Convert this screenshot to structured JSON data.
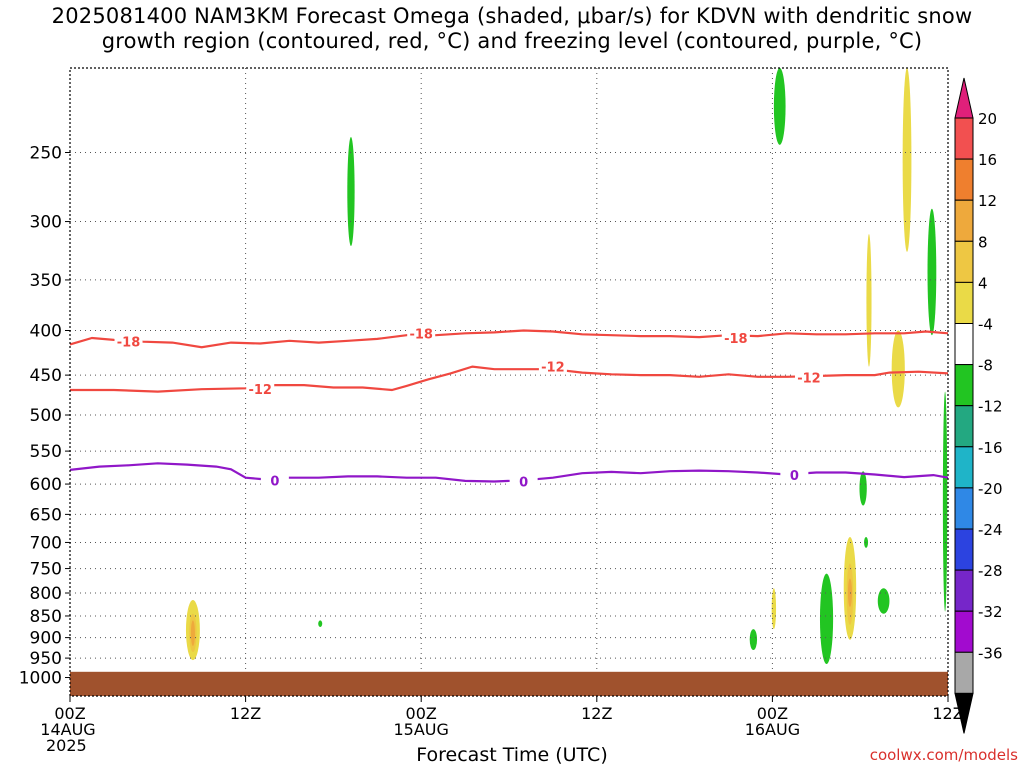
{
  "title": {
    "line1": "2025081400 NAM3KM Forecast Omega (shaded, μbar/s) for KDVN with dendritic snow",
    "line2": "growth region (contoured, red, °C) and freezing level (contoured, purple, °C)"
  },
  "credit": "coolwx.com/models",
  "chart_data": {
    "type": "heatmap",
    "title": "2025081400 NAM3KM Forecast Omega (shaded, μbar/s) for KDVN with dendritic snow growth region (contoured, red, °C) and freezing level (contoured, purple, °C)",
    "xlabel": "Forecast Time (UTC)",
    "ylabel": "",
    "x_range_hours": [
      0,
      60
    ],
    "y_range_hpa": [
      200,
      1050
    ],
    "y_axis": "pressure (log, inverted)",
    "y_ticks": [
      250,
      300,
      350,
      400,
      450,
      500,
      550,
      600,
      650,
      700,
      750,
      800,
      850,
      900,
      950,
      1000
    ],
    "x_ticks": [
      {
        "hour": 0,
        "lines": [
          "00Z",
          "14AUG",
          "2025"
        ]
      },
      {
        "hour": 12,
        "lines": [
          "12Z"
        ]
      },
      {
        "hour": 24,
        "lines": [
          "00Z",
          "15AUG"
        ]
      },
      {
        "hour": 36,
        "lines": [
          "12Z"
        ]
      },
      {
        "hour": 48,
        "lines": [
          "00Z",
          "16AUG"
        ]
      },
      {
        "hour": 60,
        "lines": [
          "12Z"
        ]
      }
    ],
    "grid": true,
    "ground_color": "#a0522d",
    "ground_top_hpa": 985,
    "colorbar": {
      "labels": [
        "20",
        "16",
        "12",
        "8",
        "4",
        "-4",
        "-8",
        "-12",
        "-16",
        "-20",
        "-24",
        "-28",
        "-32",
        "-36"
      ],
      "colors": [
        "#f25050",
        "#ef7f2e",
        "#eea93c",
        "#eec743",
        "#eada47",
        "#ffffff",
        "#22c522",
        "#23a881",
        "#1fb4c8",
        "#2f88e6",
        "#2c43e0",
        "#7626c9",
        "#a20bcf",
        "#a8a8a8"
      ],
      "top_arrow_color": "#e0207a",
      "bottom_arrow_color": "#000000"
    },
    "contours": [
      {
        "name": "-18",
        "color": "#f04840",
        "points": [
          [
            0,
            415
          ],
          [
            1.5,
            408
          ],
          [
            3,
            410
          ],
          [
            5,
            412
          ],
          [
            7,
            413
          ],
          [
            9,
            418
          ],
          [
            11,
            413
          ],
          [
            13,
            414
          ],
          [
            15,
            411
          ],
          [
            17,
            413
          ],
          [
            19,
            411
          ],
          [
            21,
            409
          ],
          [
            23,
            405
          ],
          [
            25,
            405
          ],
          [
            27,
            403
          ],
          [
            29,
            402
          ],
          [
            31,
            400
          ],
          [
            33,
            401
          ],
          [
            35,
            404
          ],
          [
            37,
            405
          ],
          [
            39,
            406
          ],
          [
            41,
            406
          ],
          [
            43,
            407
          ],
          [
            45,
            405
          ],
          [
            47,
            406
          ],
          [
            49,
            403
          ],
          [
            51,
            404
          ],
          [
            53,
            404
          ],
          [
            55,
            403
          ],
          [
            57,
            403
          ],
          [
            58.5,
            401
          ],
          [
            60,
            403
          ]
        ],
        "labels": [
          [
            4,
            412
          ],
          [
            24,
            403
          ],
          [
            45.5,
            408
          ]
        ]
      },
      {
        "name": "-12",
        "color": "#f04840",
        "points": [
          [
            0,
            468
          ],
          [
            3,
            468
          ],
          [
            6,
            470
          ],
          [
            9,
            467
          ],
          [
            12,
            466
          ],
          [
            14,
            462
          ],
          [
            16,
            462
          ],
          [
            18,
            465
          ],
          [
            20,
            465
          ],
          [
            22,
            468
          ],
          [
            23,
            463
          ],
          [
            24.5,
            455
          ],
          [
            26,
            448
          ],
          [
            27.5,
            440
          ],
          [
            29,
            443
          ],
          [
            31,
            443
          ],
          [
            33,
            443
          ],
          [
            35,
            447
          ],
          [
            37,
            449
          ],
          [
            39,
            450
          ],
          [
            41,
            450
          ],
          [
            43,
            452
          ],
          [
            45,
            449
          ],
          [
            47,
            452
          ],
          [
            49,
            452
          ],
          [
            51,
            451
          ],
          [
            53,
            450
          ],
          [
            55,
            450
          ],
          [
            56,
            447
          ],
          [
            58,
            446
          ],
          [
            60,
            448
          ]
        ],
        "labels": [
          [
            13,
            467
          ],
          [
            33,
            440
          ],
          [
            50.5,
            453
          ]
        ]
      },
      {
        "name": "0",
        "color": "#9017c8",
        "points": [
          [
            0,
            578
          ],
          [
            2,
            573
          ],
          [
            4,
            571
          ],
          [
            6,
            568
          ],
          [
            8,
            570
          ],
          [
            10,
            573
          ],
          [
            11,
            577
          ],
          [
            12,
            590
          ],
          [
            13,
            592
          ],
          [
            15,
            590
          ],
          [
            17,
            590
          ],
          [
            19,
            588
          ],
          [
            21,
            588
          ],
          [
            23,
            590
          ],
          [
            25,
            590
          ],
          [
            27,
            595
          ],
          [
            29,
            596
          ],
          [
            31,
            594
          ],
          [
            33,
            590
          ],
          [
            35,
            583
          ],
          [
            37,
            581
          ],
          [
            39,
            583
          ],
          [
            41,
            580
          ],
          [
            43,
            579
          ],
          [
            45,
            580
          ],
          [
            47,
            582
          ],
          [
            49,
            585
          ],
          [
            51,
            582
          ],
          [
            53,
            582
          ],
          [
            55,
            585
          ],
          [
            57,
            589
          ],
          [
            59,
            586
          ],
          [
            60,
            590
          ]
        ],
        "labels": [
          [
            14,
            594
          ],
          [
            31,
            596
          ],
          [
            49.5,
            586
          ]
        ]
      }
    ],
    "shaded_regions": [
      {
        "category": "-8",
        "hour_center": 48.5,
        "hpa_top": 200,
        "hpa_bottom": 245,
        "width_hours": 0.8
      },
      {
        "category": "-8",
        "hour_center": 19.2,
        "hpa_top": 240,
        "hpa_bottom": 320,
        "width_hours": 0.5
      },
      {
        "category": "-8",
        "hour_center": 58.9,
        "hpa_top": 290,
        "hpa_bottom": 405,
        "width_hours": 0.6
      },
      {
        "category": "-8",
        "hour_center": 59.8,
        "hpa_top": 470,
        "hpa_bottom": 840,
        "width_hours": 0.3
      },
      {
        "category": "-8",
        "hour_center": 54.2,
        "hpa_top": 580,
        "hpa_bottom": 635,
        "width_hours": 0.5
      },
      {
        "category": "-8",
        "hour_center": 54.4,
        "hpa_top": 690,
        "hpa_bottom": 710,
        "width_hours": 0.2
      },
      {
        "category": "-8",
        "hour_center": 55.6,
        "hpa_top": 790,
        "hpa_bottom": 845,
        "width_hours": 0.8
      },
      {
        "category": "-8",
        "hour_center": 51.7,
        "hpa_top": 760,
        "hpa_bottom": 965,
        "width_hours": 0.9
      },
      {
        "category": "-8",
        "hour_center": 46.7,
        "hpa_top": 880,
        "hpa_bottom": 930,
        "width_hours": 0.5
      },
      {
        "category": "-8",
        "hour_center": 17.1,
        "hpa_top": 860,
        "hpa_bottom": 875,
        "width_hours": 0.2
      },
      {
        "category": "4",
        "hour_center": 57.2,
        "hpa_top": 200,
        "hpa_bottom": 325,
        "width_hours": 0.6
      },
      {
        "category": "4",
        "hour_center": 54.6,
        "hpa_top": 310,
        "hpa_bottom": 440,
        "width_hours": 0.35
      },
      {
        "category": "4",
        "hour_center": 56.6,
        "hpa_top": 400,
        "hpa_bottom": 490,
        "width_hours": 0.9
      },
      {
        "category": "4",
        "hour_center": 48.1,
        "hpa_top": 790,
        "hpa_bottom": 880,
        "width_hours": 0.3
      },
      {
        "category": "4",
        "hour_center": 53.3,
        "hpa_top": 690,
        "hpa_bottom": 905,
        "width_hours": 0.85
      },
      {
        "category": "8",
        "hour_center": 53.3,
        "hpa_top": 740,
        "hpa_bottom": 870,
        "width_hours": 0.45
      },
      {
        "category": "12",
        "hour_center": 53.3,
        "hpa_top": 770,
        "hpa_bottom": 830,
        "width_hours": 0.2
      },
      {
        "category": "4",
        "hour_center": 8.4,
        "hpa_top": 815,
        "hpa_bottom": 955,
        "width_hours": 0.95
      },
      {
        "category": "8",
        "hour_center": 8.4,
        "hpa_top": 845,
        "hpa_bottom": 935,
        "width_hours": 0.5
      },
      {
        "category": "12",
        "hour_center": 8.4,
        "hpa_top": 860,
        "hpa_bottom": 920,
        "width_hours": 0.25
      }
    ]
  }
}
